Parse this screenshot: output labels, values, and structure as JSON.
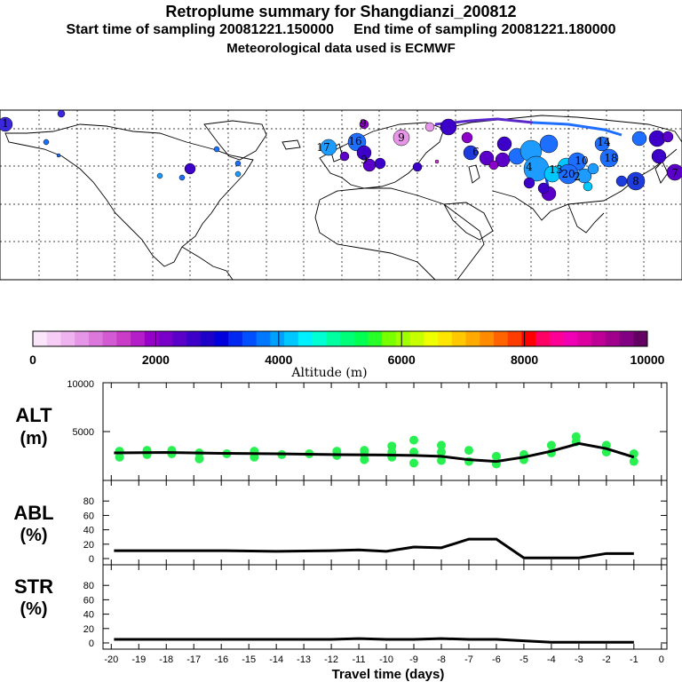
{
  "header": {
    "title": "Retroplume summary for Shangdianzi_200812",
    "subtitle": "Start time of sampling 20081221.150000     End time of sampling 20081221.180000",
    "met_line": "Meteorological data used is ECMWF"
  },
  "colorbar": {
    "ticks": [
      "0",
      "2000",
      "4000",
      "6000",
      "8000",
      "10000"
    ],
    "label": "Altitude (m)",
    "colors": [
      "#fae6fa",
      "#f5cdf5",
      "#efb4ef",
      "#e696e6",
      "#dc78dc",
      "#d25ad2",
      "#c83cc8",
      "#b41ec8",
      "#9600c8",
      "#7800c8",
      "#5a00c8",
      "#3c00c8",
      "#1e00c8",
      "#0000dc",
      "#0028f0",
      "#0050ff",
      "#0078ff",
      "#00a0ff",
      "#00c8ff",
      "#00f0ff",
      "#00ffd2",
      "#00ffa0",
      "#00ff78",
      "#00ff50",
      "#28ff28",
      "#78ff00",
      "#a0ff00",
      "#c8ff00",
      "#f0ff00",
      "#ffe600",
      "#ffc800",
      "#ffaa00",
      "#ff8c00",
      "#ff6400",
      "#ff3c00",
      "#ff0000",
      "#ff0064",
      "#ff0096",
      "#f000b4",
      "#dc00a0",
      "#be0096",
      "#a0008c",
      "#820082",
      "#640064"
    ]
  },
  "map": {
    "labels": [
      {
        "t": "1",
        "c": "#3c28dc"
      },
      {
        "t": "17",
        "c": "#1e9bff"
      },
      {
        "t": "16",
        "c": "#1e6eff"
      },
      {
        "t": "9",
        "c": "#e696e6"
      },
      {
        "t": "9",
        "c": "#8c00c8"
      },
      {
        "t": "9",
        "c": "#5a00c8"
      },
      {
        "t": "4",
        "c": "#1e9bff"
      },
      {
        "t": "13",
        "c": "#00c8ff"
      },
      {
        "t": "20",
        "c": "#1e6eff"
      },
      {
        "t": "10",
        "c": "#1e9bff"
      },
      {
        "t": "18",
        "c": "#1e6eff"
      },
      {
        "t": "8",
        "c": "#1e3cdc"
      },
      {
        "t": "6",
        "c": "#5a00c8"
      },
      {
        "t": "7",
        "c": "#3c00c8"
      },
      {
        "t": "14",
        "c": "#1e6eff"
      },
      {
        "t": "2",
        "c": "#1e3cdc"
      }
    ]
  },
  "panels": {
    "alt": {
      "label_line1": "ALT",
      "label_line2": "(m)",
      "ticks": [
        "10000",
        "5000"
      ]
    },
    "abl": {
      "label_line1": "ABL",
      "label_line2": "(%)",
      "ticks": [
        "80",
        "60",
        "40",
        "20",
        "0"
      ]
    },
    "str": {
      "label_line1": "STR",
      "label_line2": "(%)",
      "ticks": [
        "80",
        "60",
        "40",
        "20",
        "0"
      ]
    }
  },
  "x_axis": {
    "title": "Travel time (days)",
    "ticks": [
      "-20",
      "-19",
      "-18",
      "-17",
      "-16",
      "-15",
      "-14",
      "-13",
      "-12",
      "-11",
      "-10",
      "-9",
      "-8",
      "-7",
      "-6",
      "-5",
      "-4",
      "-3",
      "-2",
      "-1",
      "0"
    ]
  },
  "chart_data": [
    {
      "type": "line",
      "title": "ALT (m)",
      "ylabel": "ALT (m)",
      "xlabel": "Travel time (days)",
      "xlim": [
        -20,
        0
      ],
      "ylim": [
        0,
        10000
      ],
      "x": [
        -19.9,
        -18,
        -16,
        -14,
        -12,
        -10,
        -9,
        -8,
        -7,
        -6,
        -5,
        -4,
        -3,
        -2,
        -1
      ],
      "series": [
        {
          "name": "median altitude",
          "values": [
            2500,
            2550,
            2450,
            2400,
            2300,
            2250,
            2200,
            2100,
            1700,
            1500,
            2000,
            2700,
            3600,
            3000,
            2000
          ]
        }
      ],
      "scatter": {
        "x": [
          -19.7,
          -19.7,
          -18.7,
          -18.7,
          -17.8,
          -17.8,
          -16.8,
          -16.8,
          -15.8,
          -14.8,
          -14.8,
          -13.8,
          -12.8,
          -11.8,
          -11.8,
          -10.8,
          -10.8,
          -10.8,
          -9.8,
          -9.8,
          -9.8,
          -9.0,
          -9.0,
          -9.0,
          -8.0,
          -8.0,
          -8.0,
          -7.0,
          -7.0,
          -6.0,
          -6.0,
          -5.0,
          -5.0,
          -4.0,
          -4.0,
          -3.1,
          -3.1,
          -2.0,
          -2.0,
          -1.0,
          -1.0
        ],
        "y": [
          2000,
          2700,
          2300,
          2800,
          2400,
          2800,
          1800,
          2500,
          2400,
          2000,
          2700,
          2300,
          2400,
          2200,
          2700,
          1700,
          2300,
          2800,
          2000,
          2600,
          3300,
          1300,
          2600,
          4000,
          1600,
          2600,
          3400,
          1500,
          2800,
          1200,
          2100,
          1700,
          2300,
          2500,
          3400,
          3800,
          4400,
          2600,
          3400,
          1500,
          2400
        ]
      }
    },
    {
      "type": "line",
      "title": "ABL (%)",
      "ylabel": "ABL (%)",
      "xlim": [
        -20,
        0
      ],
      "ylim": [
        0,
        100
      ],
      "x": [
        -19.9,
        -18,
        -16,
        -14,
        -12,
        -11,
        -10,
        -9,
        -8,
        -7,
        -6,
        -5,
        -4,
        -3,
        -2,
        -1
      ],
      "series": [
        {
          "name": "fraction in ABL",
          "values": [
            11,
            11,
            11,
            10,
            11,
            12,
            10,
            16,
            15,
            27,
            27,
            1,
            1,
            1,
            7,
            7
          ]
        }
      ]
    },
    {
      "type": "line",
      "title": "STR (%)",
      "ylabel": "STR (%)",
      "xlim": [
        -20,
        0
      ],
      "ylim": [
        0,
        100
      ],
      "x": [
        -19.9,
        -18,
        -16,
        -14,
        -12,
        -11,
        -10,
        -9,
        -8,
        -7,
        -6,
        -5,
        -4,
        -3,
        -2,
        -1
      ],
      "series": [
        {
          "name": "fraction in stratosphere",
          "values": [
            5,
            5,
            5,
            5,
            5,
            6,
            5,
            5,
            6,
            5,
            5,
            3,
            1,
            1,
            1,
            1
          ]
        }
      ]
    }
  ]
}
